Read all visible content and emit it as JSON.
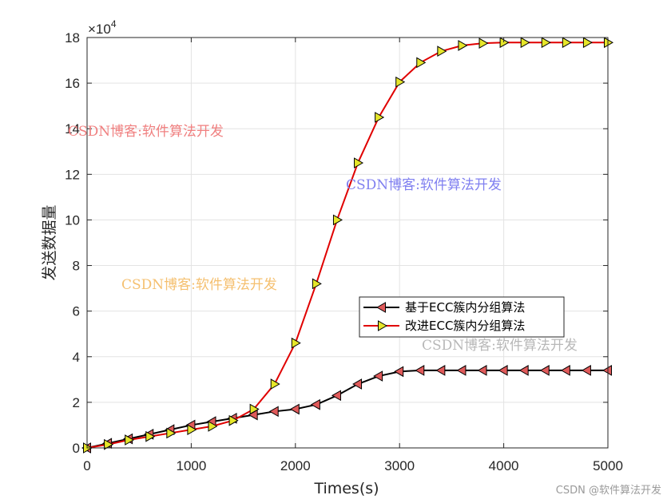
{
  "chart_data": {
    "type": "line",
    "xlabel": "Times(s)",
    "ylabel": "发送数据量",
    "y_exponent_label": "×10",
    "y_exponent_power": "4",
    "xlim": [
      0,
      5000
    ],
    "ylim": [
      0,
      18
    ],
    "xticks": [
      0,
      1000,
      2000,
      3000,
      4000,
      5000
    ],
    "yticks": [
      0,
      2,
      4,
      6,
      8,
      10,
      12,
      14,
      16,
      18
    ],
    "grid": true,
    "legend_position": "lower-right",
    "x": [
      0,
      200,
      400,
      600,
      800,
      1000,
      1200,
      1400,
      1600,
      1800,
      2000,
      2200,
      2400,
      2600,
      2800,
      3000,
      3200,
      3400,
      3600,
      3800,
      4000,
      4200,
      4400,
      4600,
      4800,
      5000
    ],
    "series": [
      {
        "name": "基于ECC簇内分组算法",
        "line_color": "#000000",
        "marker": "triangle-left",
        "marker_fill": "#e05a5a",
        "values": [
          0,
          0.2,
          0.4,
          0.6,
          0.8,
          1.0,
          1.15,
          1.3,
          1.45,
          1.6,
          1.7,
          1.9,
          2.3,
          2.8,
          3.15,
          3.35,
          3.4,
          3.4,
          3.4,
          3.4,
          3.4,
          3.4,
          3.4,
          3.4,
          3.4,
          3.4
        ]
      },
      {
        "name": "改进ECC簇内分组算法",
        "line_color": "#e00000",
        "marker": "triangle-right",
        "marker_fill": "#e6e62a",
        "values": [
          0,
          0.15,
          0.35,
          0.5,
          0.65,
          0.8,
          0.95,
          1.2,
          1.7,
          2.8,
          4.6,
          7.2,
          10.0,
          12.5,
          14.5,
          16.05,
          16.9,
          17.4,
          17.65,
          17.75,
          17.78,
          17.78,
          17.78,
          17.78,
          17.78,
          17.78
        ]
      }
    ]
  },
  "watermarks": [
    {
      "text": "CSDN博客:软件算法开发",
      "color": "#f08080"
    },
    {
      "text": "CSDN博客:软件算法开发",
      "color": "#8080f0"
    },
    {
      "text": "CSDN博客:软件算法开发",
      "color": "#f5c070"
    },
    {
      "text": "CSDN博客:软件算法开发",
      "color": "#b8b8b8"
    }
  ],
  "credit": "CSDN @软件算法开发"
}
